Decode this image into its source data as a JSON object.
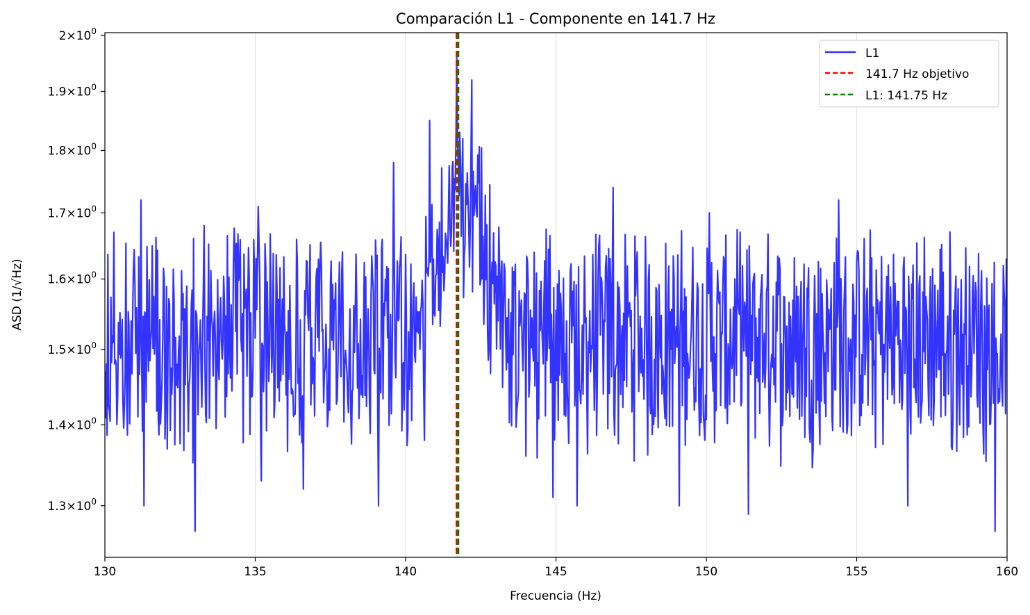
{
  "chart_data": {
    "type": "line",
    "title": "Comparación L1 - Componente en 141.7 Hz",
    "xlabel": "Frecuencia (Hz)",
    "ylabel": "ASD (1/√Hz)",
    "xlim": [
      130,
      160
    ],
    "ylim": [
      1.24,
      2.005
    ],
    "yscale": "log",
    "grid": "x-only",
    "legend_position": "upper right",
    "xticks": [
      130,
      135,
      140,
      145,
      150,
      155,
      160
    ],
    "xtick_labels": [
      "130",
      "135",
      "140",
      "145",
      "150",
      "155",
      "160"
    ],
    "yticks": [
      1.3,
      1.4,
      1.5,
      1.6,
      1.7,
      1.8,
      1.9,
      2.0
    ],
    "ytick_mantissas": [
      "1.3",
      "1.4",
      "1.5",
      "1.6",
      "1.7",
      "1.8",
      "1.9",
      "2"
    ],
    "ytick_base": "10",
    "ytick_exponent": "0",
    "series": [
      {
        "name": "L1",
        "color": "#3333ff",
        "style": "solid",
        "x_start": 130,
        "x_end": 160,
        "noise_description": "dense noisy spectrum (~1.26–1.72) with broad bump rising to ~1.96 near 141.7 Hz",
        "anchor_points": [
          [
            130.0,
            1.47
          ],
          [
            130.3,
            1.67
          ],
          [
            130.6,
            1.43
          ],
          [
            131.2,
            1.72
          ],
          [
            131.3,
            1.3
          ],
          [
            133.0,
            1.27
          ],
          [
            133.3,
            1.68
          ],
          [
            135.1,
            1.71
          ],
          [
            135.2,
            1.33
          ],
          [
            136.6,
            1.32
          ],
          [
            139.1,
            1.3
          ],
          [
            139.6,
            1.78
          ],
          [
            140.8,
            1.85
          ],
          [
            141.7,
            1.96
          ],
          [
            142.2,
            1.92
          ],
          [
            143.0,
            1.62
          ],
          [
            144.9,
            1.31
          ],
          [
            145.7,
            1.3
          ],
          [
            146.9,
            1.74
          ],
          [
            149.1,
            1.3
          ],
          [
            150.1,
            1.7
          ],
          [
            151.4,
            1.29
          ],
          [
            154.4,
            1.72
          ],
          [
            156.7,
            1.3
          ],
          [
            159.6,
            1.27
          ],
          [
            160.0,
            1.6
          ]
        ]
      }
    ],
    "vlines": [
      {
        "name": "141.7 Hz objetivo",
        "x": 141.7,
        "color": "#ff0000",
        "style": "dashed"
      },
      {
        "name": "L1: 141.75 Hz",
        "x": 141.75,
        "color": "#008000",
        "style": "dashed"
      }
    ]
  }
}
